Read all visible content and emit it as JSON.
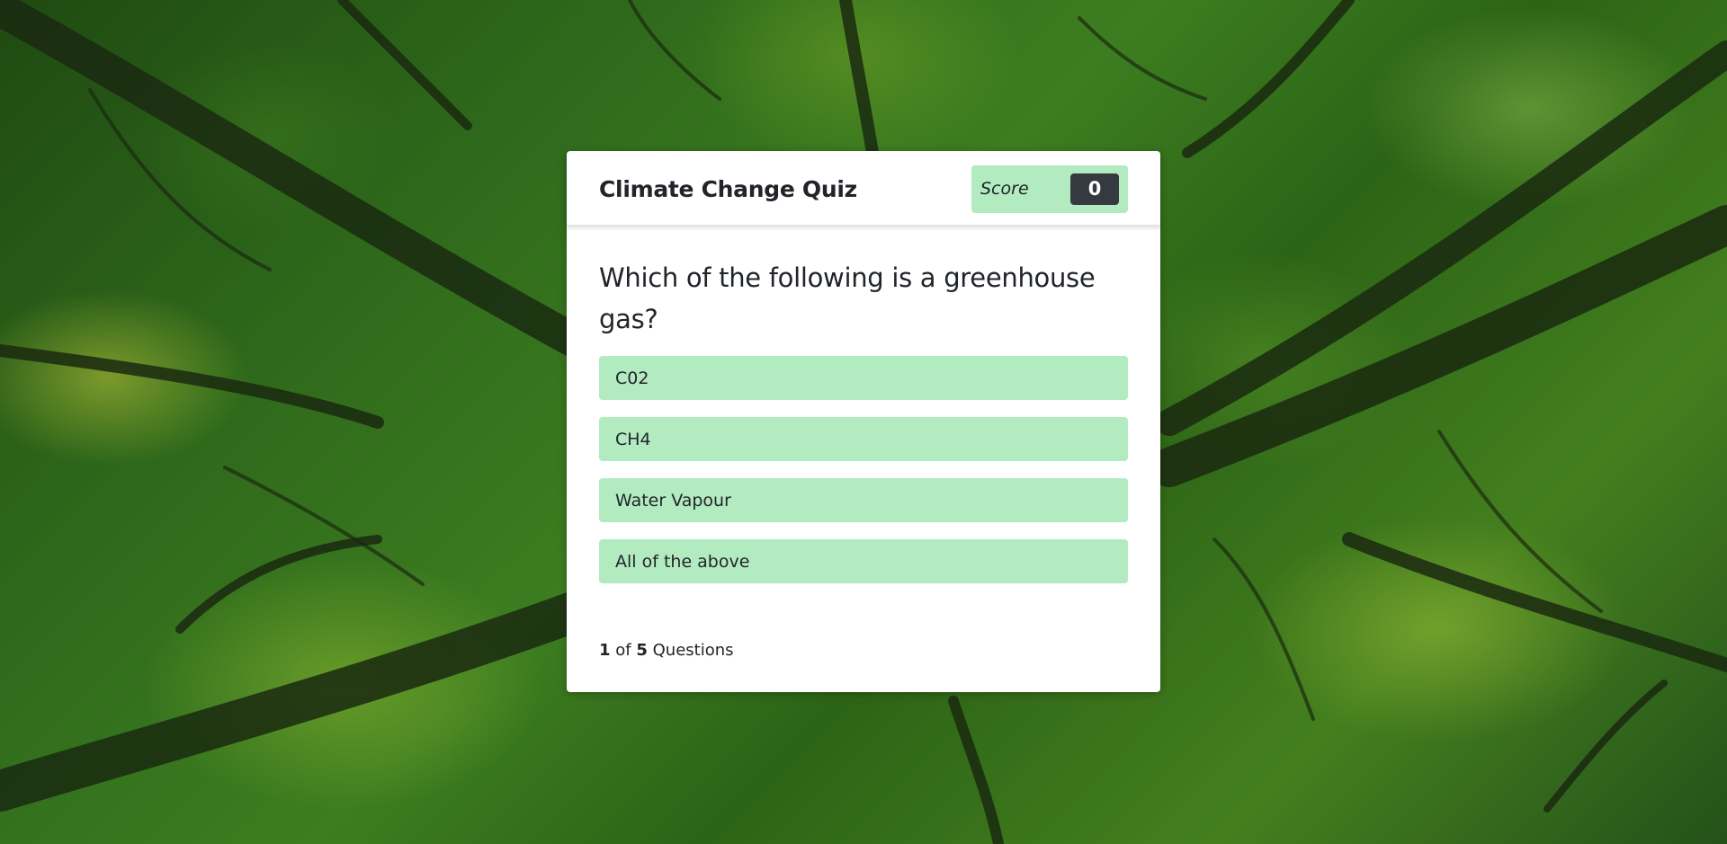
{
  "background": {
    "description_colors": [
      "#1f4a12",
      "#3d7d20",
      "#9cc83c"
    ]
  },
  "quiz": {
    "title": "Climate Change Quiz",
    "score_label": "Score",
    "score_value": "0",
    "question": "Which of the following is a greenhouse gas?",
    "options": [
      {
        "label": "C02"
      },
      {
        "label": "CH4"
      },
      {
        "label": "Water Vapour"
      },
      {
        "label": "All of the above"
      }
    ],
    "progress": {
      "current": "1",
      "of_text": "of",
      "total": "5",
      "suffix": "Questions"
    }
  },
  "colors": {
    "option_bg": "#b2ebbf",
    "score_badge_bg": "#343a40",
    "card_bg": "#ffffff"
  }
}
